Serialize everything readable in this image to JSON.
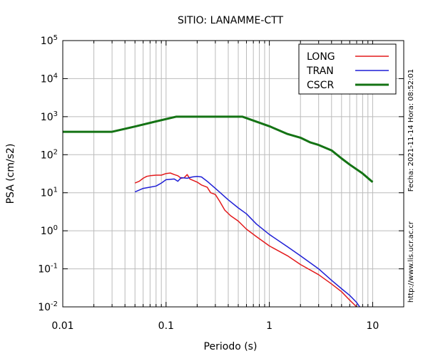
{
  "chart_data": {
    "type": "line",
    "title": "SITIO: LANAMME-CTT",
    "xlabel": "Periodo (s)",
    "ylabel": "PSA (cm/s2)",
    "x_scale": "log",
    "y_scale": "log",
    "xlim": [
      0.01,
      20
    ],
    "ylim": [
      0.01,
      100000
    ],
    "grid": true,
    "legend_position": "top-right",
    "x_ticks": [
      {
        "value": 0.01,
        "label": "0.01"
      },
      {
        "value": 0.1,
        "label": "0.1"
      },
      {
        "value": 1,
        "label": "1"
      },
      {
        "value": 10,
        "label": "10"
      }
    ],
    "y_ticks": [
      {
        "value": 0.01,
        "base": "10",
        "exp": "-2"
      },
      {
        "value": 0.1,
        "base": "10",
        "exp": "-1"
      },
      {
        "value": 1,
        "base": "10",
        "exp": "0"
      },
      {
        "value": 10,
        "base": "10",
        "exp": "1"
      },
      {
        "value": 100,
        "base": "10",
        "exp": "2"
      },
      {
        "value": 1000,
        "base": "10",
        "exp": "3"
      },
      {
        "value": 10000,
        "base": "10",
        "exp": "4"
      },
      {
        "value": 100000,
        "base": "10",
        "exp": "5"
      }
    ],
    "series": [
      {
        "name": "LONG",
        "color": "#e31a1c",
        "points": [
          [
            0.05,
            18.0
          ],
          [
            0.055,
            20.0
          ],
          [
            0.06,
            24.0
          ],
          [
            0.065,
            27.0
          ],
          [
            0.07,
            28.0
          ],
          [
            0.08,
            29.0
          ],
          [
            0.09,
            29.0
          ],
          [
            0.1,
            32.0
          ],
          [
            0.11,
            33.0
          ],
          [
            0.12,
            30.0
          ],
          [
            0.13,
            28.0
          ],
          [
            0.14,
            24.0
          ],
          [
            0.15,
            25.0
          ],
          [
            0.16,
            30.0
          ],
          [
            0.17,
            23.0
          ],
          [
            0.2,
            19.0
          ],
          [
            0.22,
            16.0
          ],
          [
            0.25,
            14.0
          ],
          [
            0.27,
            10.0
          ],
          [
            0.3,
            9.0
          ],
          [
            0.33,
            6.0
          ],
          [
            0.37,
            3.5
          ],
          [
            0.42,
            2.5
          ],
          [
            0.5,
            1.8
          ],
          [
            0.6,
            1.1
          ],
          [
            0.75,
            0.7
          ],
          [
            1.0,
            0.4
          ],
          [
            1.5,
            0.22
          ],
          [
            2.0,
            0.13
          ],
          [
            3.0,
            0.07
          ],
          [
            4.0,
            0.04
          ],
          [
            5.0,
            0.025
          ],
          [
            6.0,
            0.015
          ],
          [
            7.0,
            0.01
          ]
        ]
      },
      {
        "name": "TRAN",
        "color": "#1f1fd6",
        "points": [
          [
            0.05,
            10.5
          ],
          [
            0.06,
            13.0
          ],
          [
            0.07,
            14.0
          ],
          [
            0.08,
            15.0
          ],
          [
            0.09,
            18.0
          ],
          [
            0.1,
            22.0
          ],
          [
            0.12,
            23.0
          ],
          [
            0.13,
            20.0
          ],
          [
            0.14,
            25.0
          ],
          [
            0.16,
            24.0
          ],
          [
            0.18,
            26.0
          ],
          [
            0.2,
            27.0
          ],
          [
            0.22,
            26.0
          ],
          [
            0.25,
            20.0
          ],
          [
            0.3,
            13.0
          ],
          [
            0.35,
            9.0
          ],
          [
            0.4,
            6.5
          ],
          [
            0.5,
            4.0
          ],
          [
            0.6,
            2.8
          ],
          [
            0.75,
            1.5
          ],
          [
            1.0,
            0.8
          ],
          [
            1.5,
            0.38
          ],
          [
            2.0,
            0.22
          ],
          [
            3.0,
            0.1
          ],
          [
            4.0,
            0.05
          ],
          [
            5.0,
            0.03
          ],
          [
            6.0,
            0.02
          ],
          [
            7.0,
            0.013
          ],
          [
            7.5,
            0.01
          ]
        ]
      },
      {
        "name": "CSCR",
        "color": "#147314",
        "points": [
          [
            0.01,
            400
          ],
          [
            0.03,
            400
          ],
          [
            0.05,
            550
          ],
          [
            0.08,
            750
          ],
          [
            0.125,
            1000
          ],
          [
            0.55,
            1000
          ],
          [
            1.0,
            560
          ],
          [
            1.5,
            350
          ],
          [
            2.0,
            280
          ],
          [
            2.5,
            210
          ],
          [
            3.0,
            180
          ],
          [
            4.0,
            130
          ],
          [
            5.0,
            80
          ],
          [
            6.0,
            55
          ],
          [
            8.0,
            32
          ],
          [
            10.0,
            19
          ]
        ]
      }
    ],
    "side_labels": {
      "timestamp": "Fecha: 2021-11-14 Hora: 08:52:01",
      "url": "http://www.lis.ucr.ac.cr"
    }
  }
}
